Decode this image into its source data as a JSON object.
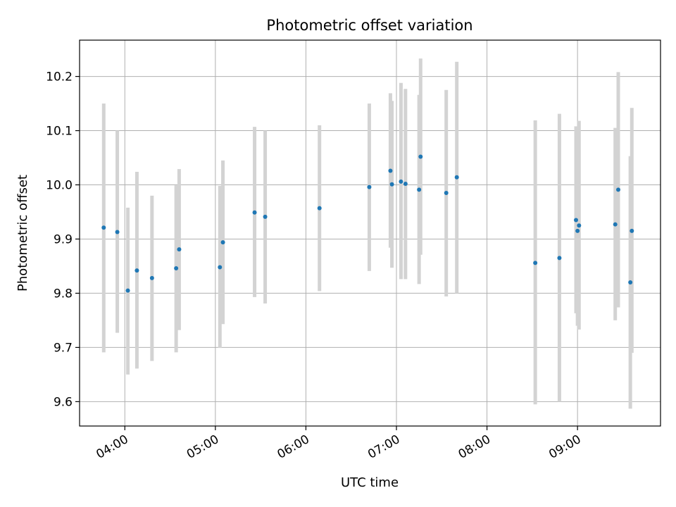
{
  "chart_data": {
    "type": "scatter",
    "title": "Photometric offset variation",
    "xlabel": "UTC time",
    "ylabel": "Photometric offset",
    "x_unit": "hours UTC",
    "xlim": [
      "03:30",
      "09:55"
    ],
    "ylim": [
      9.555,
      10.267
    ],
    "x_ticks": [
      {
        "t": "04:00",
        "label": "04:00"
      },
      {
        "t": "05:00",
        "label": "05:00"
      },
      {
        "t": "06:00",
        "label": "06:00"
      },
      {
        "t": "07:00",
        "label": "07:00"
      },
      {
        "t": "08:00",
        "label": "08:00"
      },
      {
        "t": "09:00",
        "label": "09:00"
      }
    ],
    "y_ticks": [
      {
        "v": 9.6,
        "label": "9.6"
      },
      {
        "v": 9.7,
        "label": "9.7"
      },
      {
        "v": 9.8,
        "label": "9.8"
      },
      {
        "v": 9.9,
        "label": "9.9"
      },
      {
        "v": 10.0,
        "label": "10.0"
      },
      {
        "v": 10.1,
        "label": "10.1"
      },
      {
        "v": 10.2,
        "label": "10.2"
      }
    ],
    "grid": true,
    "legend": "none",
    "colors": {
      "point": "#1f77b4",
      "error_bar": "#d3d3d3",
      "grid": "#b0b0b0"
    },
    "points": [
      {
        "t": "03:46",
        "y": 9.921,
        "lo": 9.691,
        "hi": 10.15
      },
      {
        "t": "03:55",
        "y": 9.913,
        "lo": 9.727,
        "hi": 10.1
      },
      {
        "t": "04:02",
        "y": 9.805,
        "lo": 9.65,
        "hi": 9.958
      },
      {
        "t": "04:08",
        "y": 9.842,
        "lo": 9.661,
        "hi": 10.024
      },
      {
        "t": "04:18",
        "y": 9.828,
        "lo": 9.675,
        "hi": 9.98
      },
      {
        "t": "04:34",
        "y": 9.846,
        "lo": 9.691,
        "hi": 9.999
      },
      {
        "t": "04:36",
        "y": 9.881,
        "lo": 9.732,
        "hi": 10.029
      },
      {
        "t": "05:03",
        "y": 9.848,
        "lo": 9.699,
        "hi": 9.998
      },
      {
        "t": "05:05",
        "y": 9.894,
        "lo": 9.743,
        "hi": 10.045
      },
      {
        "t": "05:26",
        "y": 9.949,
        "lo": 9.793,
        "hi": 10.107
      },
      {
        "t": "05:33",
        "y": 9.941,
        "lo": 9.781,
        "hi": 10.1
      },
      {
        "t": "06:09",
        "y": 9.957,
        "lo": 9.804,
        "hi": 10.11
      },
      {
        "t": "06:42",
        "y": 9.996,
        "lo": 9.841,
        "hi": 10.15
      },
      {
        "t": "06:56",
        "y": 10.026,
        "lo": 9.884,
        "hi": 10.169
      },
      {
        "t": "06:57",
        "y": 10.001,
        "lo": 9.847,
        "hi": 10.155
      },
      {
        "t": "07:03",
        "y": 10.006,
        "lo": 9.826,
        "hi": 10.188
      },
      {
        "t": "07:06",
        "y": 10.002,
        "lo": 9.826,
        "hi": 10.177
      },
      {
        "t": "07:15",
        "y": 9.991,
        "lo": 9.817,
        "hi": 10.166
      },
      {
        "t": "07:16",
        "y": 10.052,
        "lo": 9.871,
        "hi": 10.233
      },
      {
        "t": "07:33",
        "y": 9.985,
        "lo": 9.794,
        "hi": 10.175
      },
      {
        "t": "07:40",
        "y": 10.014,
        "lo": 9.8,
        "hi": 10.227
      },
      {
        "t": "08:32",
        "y": 9.856,
        "lo": 9.595,
        "hi": 10.119
      },
      {
        "t": "08:48",
        "y": 9.865,
        "lo": 9.6,
        "hi": 10.131
      },
      {
        "t": "08:59",
        "y": 9.935,
        "lo": 9.763,
        "hi": 10.108
      },
      {
        "t": "09:00",
        "y": 9.915,
        "lo": 9.74,
        "hi": 10.09
      },
      {
        "t": "09:01",
        "y": 9.925,
        "lo": 9.733,
        "hi": 10.118
      },
      {
        "t": "09:25",
        "y": 9.927,
        "lo": 9.75,
        "hi": 10.105
      },
      {
        "t": "09:27",
        "y": 9.991,
        "lo": 9.774,
        "hi": 10.208
      },
      {
        "t": "09:35",
        "y": 9.82,
        "lo": 9.587,
        "hi": 10.053
      },
      {
        "t": "09:36",
        "y": 9.915,
        "lo": 9.69,
        "hi": 10.142
      }
    ]
  }
}
